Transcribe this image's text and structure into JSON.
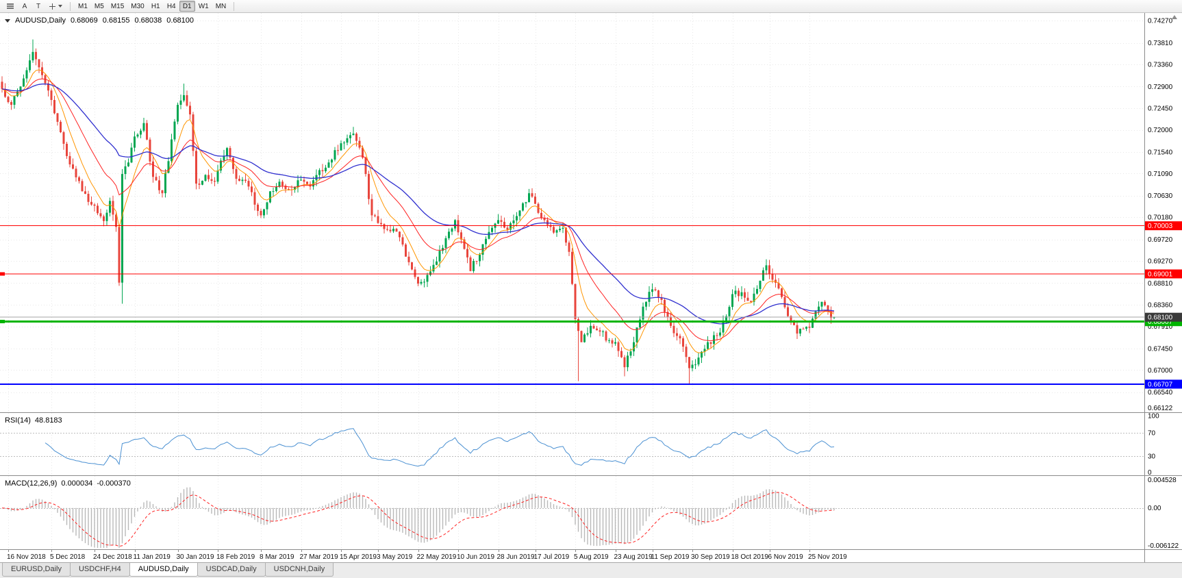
{
  "toolbar": {
    "a_button": "A",
    "t_button": "T",
    "timeframes": [
      "M1",
      "M5",
      "M15",
      "M30",
      "H1",
      "H4",
      "D1",
      "W1",
      "MN"
    ],
    "active_timeframe": "D1"
  },
  "chart": {
    "symbol_period": "AUDUSD,Daily",
    "ohlc": {
      "open": "0.68069",
      "high": "0.68155",
      "low": "0.68038",
      "close": "0.68100"
    },
    "price_axis": [
      "0.74270",
      "0.73810",
      "0.73360",
      "0.72900",
      "0.72450",
      "0.72000",
      "0.71540",
      "0.71090",
      "0.70630",
      "0.70180",
      "0.69720",
      "0.69270",
      "0.68810",
      "0.68360",
      "0.67910",
      "0.67450",
      "0.67000",
      "0.66540"
    ],
    "price_axis_bottom": "0.66122",
    "bid": {
      "value": 0.681,
      "label": "0.68100"
    },
    "hlines": [
      {
        "value": 0.70003,
        "label": "0.70003",
        "color": "#ff0000",
        "width": 1,
        "handle": false
      },
      {
        "value": 0.69001,
        "label": "0.69001",
        "color": "#ff0000",
        "width": 1,
        "handle": true
      },
      {
        "value": 0.68007,
        "label": "0.68007",
        "color": "#00b400",
        "width": 3,
        "handle": true
      },
      {
        "value": 0.66707,
        "label": "0.66707",
        "color": "#0000ff",
        "width": 2,
        "handle": false
      }
    ],
    "dates": [
      {
        "label": "16 Nov 2018",
        "i": 2
      },
      {
        "label": "5 Dec 2018",
        "i": 16
      },
      {
        "label": "24 Dec 2018",
        "i": 30
      },
      {
        "label": "11 Jan 2019",
        "i": 43
      },
      {
        "label": "30 Jan 2019",
        "i": 57
      },
      {
        "label": "18 Feb 2019",
        "i": 70
      },
      {
        "label": "8 Mar 2019",
        "i": 84
      },
      {
        "label": "27 Mar 2019",
        "i": 97
      },
      {
        "label": "15 Apr 2019",
        "i": 110
      },
      {
        "label": "3 May 2019",
        "i": 122
      },
      {
        "label": "22 May 2019",
        "i": 135
      },
      {
        "label": "10 Jun 2019",
        "i": 148
      },
      {
        "label": "28 Jun 2019",
        "i": 161
      },
      {
        "label": "17 Jul 2019",
        "i": 173
      },
      {
        "label": "5 Aug 2019",
        "i": 186
      },
      {
        "label": "23 Aug 2019",
        "i": 199
      },
      {
        "label": "11 Sep 2019",
        "i": 211
      },
      {
        "label": "30 Sep 2019",
        "i": 224
      },
      {
        "label": "18 Oct 2019",
        "i": 237
      },
      {
        "label": "6 Nov 2019",
        "i": 249
      },
      {
        "label": "25 Nov 2019",
        "i": 262
      }
    ],
    "colors": {
      "background": "#ffffff",
      "bull": "#00a651",
      "bear": "#e8453c",
      "grid": "#e7e7e7",
      "separator": "#8a8a8a",
      "axis_text": "#000000",
      "bid_line": "#a6a6a6",
      "bid_badge": "#3a3a3a"
    }
  },
  "chart_data": {
    "type": "candlestick",
    "symbol": "AUDUSD",
    "timeframe": "Daily",
    "count": 271,
    "price_range": [
      0.66122,
      0.7443
    ],
    "visible_high": 0.7388,
    "visible_low": 0.6671,
    "waypoints": [
      [
        0,
        0.7285
      ],
      [
        3,
        0.7252
      ],
      [
        6,
        0.729
      ],
      [
        10,
        0.7362
      ],
      [
        12,
        0.733
      ],
      [
        16,
        0.7262
      ],
      [
        19,
        0.7195
      ],
      [
        22,
        0.7128
      ],
      [
        26,
        0.7072
      ],
      [
        30,
        0.7042
      ],
      [
        33,
        0.701
      ],
      [
        35,
        0.7052
      ],
      [
        37,
        0.6998
      ],
      [
        38,
        0.6882
      ],
      [
        39,
        0.7108
      ],
      [
        41,
        0.7132
      ],
      [
        43,
        0.7186
      ],
      [
        46,
        0.7214
      ],
      [
        49,
        0.7102
      ],
      [
        52,
        0.7068
      ],
      [
        55,
        0.718
      ],
      [
        57,
        0.7252
      ],
      [
        59,
        0.7272
      ],
      [
        61,
        0.7232
      ],
      [
        63,
        0.7088
      ],
      [
        66,
        0.7106
      ],
      [
        69,
        0.7092
      ],
      [
        71,
        0.7136
      ],
      [
        73,
        0.7162
      ],
      [
        76,
        0.7098
      ],
      [
        80,
        0.7082
      ],
      [
        84,
        0.7022
      ],
      [
        87,
        0.7072
      ],
      [
        90,
        0.7092
      ],
      [
        93,
        0.7076
      ],
      [
        97,
        0.7096
      ],
      [
        100,
        0.7082
      ],
      [
        103,
        0.7116
      ],
      [
        106,
        0.7132
      ],
      [
        110,
        0.7172
      ],
      [
        114,
        0.7192
      ],
      [
        117,
        0.7142
      ],
      [
        120,
        0.7022
      ],
      [
        122,
        0.7006
      ],
      [
        125,
        0.6992
      ],
      [
        128,
        0.6988
      ],
      [
        131,
        0.6936
      ],
      [
        135,
        0.688
      ],
      [
        138,
        0.6898
      ],
      [
        141,
        0.6926
      ],
      [
        145,
        0.6988
      ],
      [
        147,
        0.7012
      ],
      [
        150,
        0.6952
      ],
      [
        152,
        0.6906
      ],
      [
        156,
        0.6962
      ],
      [
        159,
        0.6996
      ],
      [
        161,
        0.7012
      ],
      [
        164,
        0.6992
      ],
      [
        168,
        0.7032
      ],
      [
        171,
        0.7068
      ],
      [
        173,
        0.7046
      ],
      [
        176,
        0.7012
      ],
      [
        179,
        0.6986
      ],
      [
        182,
        0.6996
      ],
      [
        184,
        0.6946
      ],
      [
        186,
        0.6806
      ],
      [
        188,
        0.6758
      ],
      [
        191,
        0.6792
      ],
      [
        194,
        0.678
      ],
      [
        197,
        0.6762
      ],
      [
        199,
        0.6758
      ],
      [
        202,
        0.6706
      ],
      [
        205,
        0.6758
      ],
      [
        208,
        0.6832
      ],
      [
        211,
        0.6868
      ],
      [
        214,
        0.6846
      ],
      [
        217,
        0.6792
      ],
      [
        220,
        0.6766
      ],
      [
        223,
        0.6704
      ],
      [
        226,
        0.6726
      ],
      [
        229,
        0.6758
      ],
      [
        232,
        0.6772
      ],
      [
        235,
        0.6812
      ],
      [
        237,
        0.6858
      ],
      [
        240,
        0.6862
      ],
      [
        243,
        0.6842
      ],
      [
        246,
        0.6886
      ],
      [
        248,
        0.6918
      ],
      [
        250,
        0.6888
      ],
      [
        253,
        0.6852
      ],
      [
        256,
        0.6802
      ],
      [
        258,
        0.6776
      ],
      [
        260,
        0.6786
      ],
      [
        262,
        0.6788
      ],
      [
        264,
        0.6822
      ],
      [
        266,
        0.6842
      ],
      [
        268,
        0.6822
      ],
      [
        270,
        0.681
      ]
    ],
    "wick_overrides": [
      {
        "i": 10,
        "high": 0.7388
      },
      {
        "i": 39,
        "low": 0.6838
      },
      {
        "i": 59,
        "high": 0.7296
      },
      {
        "i": 114,
        "high": 0.7206
      },
      {
        "i": 187,
        "low": 0.6677
      },
      {
        "i": 202,
        "low": 0.6687
      },
      {
        "i": 223,
        "low": 0.6671
      },
      {
        "i": 248,
        "high": 0.693
      }
    ],
    "moving_averages": [
      {
        "period": 8,
        "color": "#ff9500"
      },
      {
        "period": 20,
        "color": "#ff2020"
      },
      {
        "period": 45,
        "color": "#3030cf"
      }
    ]
  },
  "rsi": {
    "label": "RSI(14)",
    "value": "48.8183",
    "period": 14,
    "color": "#4a90d2",
    "level_color": "#bdbdbd",
    "levels": [
      {
        "v": 100,
        "text": "100",
        "line": false
      },
      {
        "v": 70,
        "text": "70",
        "line": true
      },
      {
        "v": 30,
        "text": "30",
        "line": true
      },
      {
        "v": 0,
        "text": "0",
        "line": false
      }
    ]
  },
  "macd": {
    "label": "MACD(12,26,9)",
    "main_value": "0.000034",
    "signal_value": "-0.000370",
    "fast": 12,
    "slow": 26,
    "signal": 9,
    "range": [
      -0.0062,
      0.0046
    ],
    "hist_color": "#b8b8b8",
    "signal_color": "#ff2020",
    "axis_labels": [
      {
        "v": 0.004528,
        "text": "0.004528"
      },
      {
        "v": 0,
        "text": "0.00"
      },
      {
        "v": -0.006122,
        "text": "-0.006122"
      }
    ]
  },
  "tabs": {
    "items": [
      "EURUSD,Daily",
      "USDCHF,H4",
      "AUDUSD,Daily",
      "USDCAD,Daily",
      "USDCNH,Daily"
    ],
    "active": "AUDUSD,Daily"
  }
}
